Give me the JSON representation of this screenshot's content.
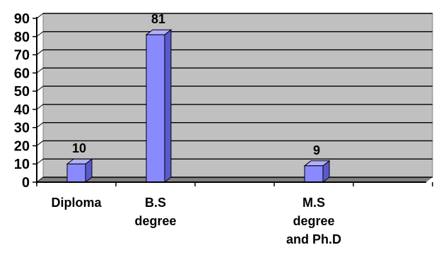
{
  "chart_data": {
    "type": "bar",
    "categories": [
      "Diploma",
      "B.S\ndegree",
      "",
      "M.S\ndegree\nand Ph.D",
      ""
    ],
    "values": [
      10,
      81,
      null,
      9,
      null
    ],
    "data_labels": [
      "10",
      "81",
      "",
      "9",
      ""
    ],
    "ylim": [
      0,
      90
    ],
    "yticks": [
      "0",
      "10",
      "20",
      "30",
      "40",
      "50",
      "60",
      "70",
      "80",
      "90"
    ],
    "grid": true,
    "legend": "none",
    "colors": {
      "plot_background": "#c0c0c0",
      "bar_front": "#8a8aff",
      "bar_side": "#5a5acc",
      "bar_top": "#b0b0ff",
      "gridline": "#000000"
    }
  }
}
